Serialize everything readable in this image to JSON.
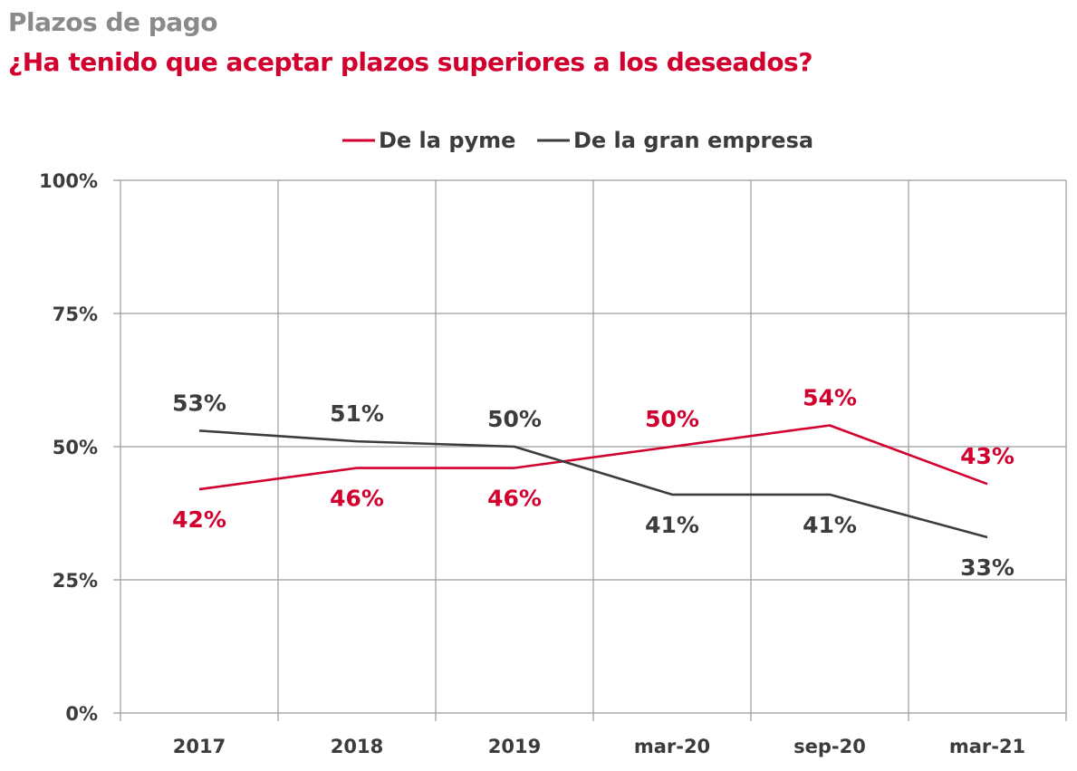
{
  "header": {
    "title": "Plazos de pago",
    "subtitle": "¿Ha tenido que aceptar plazos superiores a los deseados?"
  },
  "colors": {
    "pyme": "#d2002e",
    "gran_empresa": "#3c3c3c",
    "grid": "#9a9a9a",
    "title_gray": "#8a8a8a"
  },
  "chart_data": {
    "type": "line",
    "title": "¿Ha tenido que aceptar plazos superiores a los deseados?",
    "xlabel": "",
    "ylabel": "",
    "categories": [
      "2017",
      "2018",
      "2019",
      "mar-20",
      "sep-20",
      "mar-21"
    ],
    "ylim": [
      0,
      100
    ],
    "yticks": [
      0,
      25,
      50,
      75,
      100
    ],
    "ytick_labels": [
      "0%",
      "25%",
      "50%",
      "75%",
      "100%"
    ],
    "grid": true,
    "legend_position": "top-center",
    "series": [
      {
        "name": "De la pyme",
        "color": "#d2002e",
        "values": [
          42,
          46,
          46,
          50,
          54,
          43
        ],
        "labels": [
          "42%",
          "46%",
          "46%",
          "50%",
          "54%",
          "43%"
        ],
        "label_side": [
          "below",
          "below",
          "below",
          "above",
          "above",
          "above"
        ]
      },
      {
        "name": "De la gran empresa",
        "color": "#3c3c3c",
        "values": [
          53,
          51,
          50,
          41,
          41,
          33
        ],
        "labels": [
          "53%",
          "51%",
          "50%",
          "41%",
          "41%",
          "33%"
        ],
        "label_side": [
          "above",
          "above",
          "above",
          "below",
          "below",
          "below"
        ]
      }
    ]
  }
}
